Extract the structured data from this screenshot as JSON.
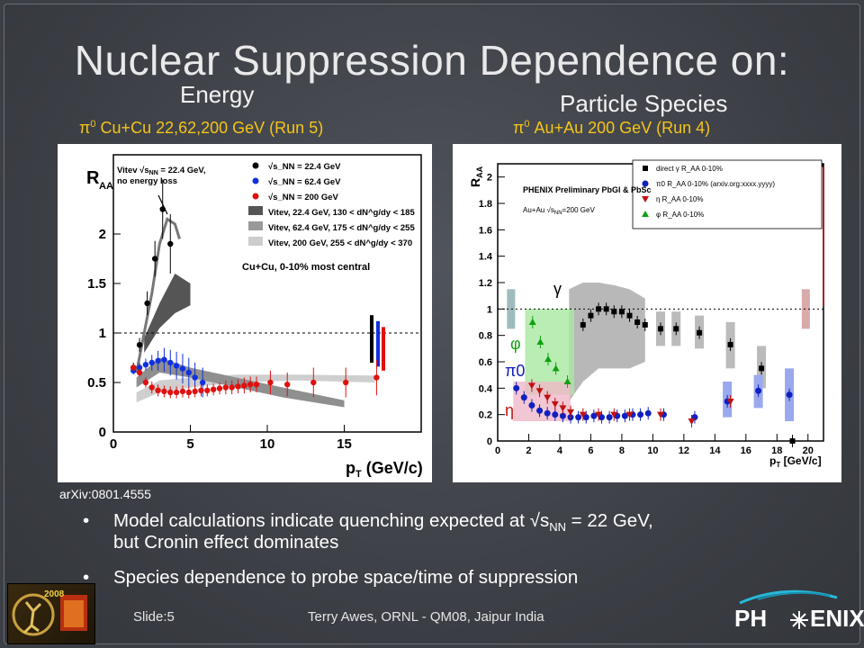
{
  "slide": {
    "title": "Nuclear Suppression Dependence on:",
    "subtitle_left": "Energy",
    "subtitle_right": "Particle Species",
    "caption_left_sym": "π",
    "caption_left_sup": "0",
    "caption_left_text": " Cu+Cu 22,62,200 GeV (Run 5)",
    "caption_right_sym": "π",
    "caption_right_sup": "0",
    "caption_right_text": " Au+Au 200 GeV (Run 4)",
    "reference": "arXiv:0801.4555",
    "bullet1_line1": "Model calculations indicate quenching expected at √s",
    "bullet1_sub": "NN",
    "bullet1_line1_end": " = 22 GeV,",
    "bullet1_line2": "but Cronin effect dominates",
    "bullet2": "Species dependence to probe space/time of suppression",
    "bullet_char": "•",
    "footer_slide": "Slide:5",
    "footer_author": "Terry Awes, ORNL - QM08, Jaipur India",
    "logo_left": "2008",
    "logo_right_a": "PH",
    "logo_right_b": "ENIX",
    "colors": {
      "caption": "#f5c518",
      "title": "#e9e9ea"
    }
  },
  "chart_data": [
    {
      "type": "scatter",
      "ylabel": "R_AA",
      "xlabel": "p_T (GeV/c)",
      "xlim": [
        0,
        20
      ],
      "ylim": [
        0,
        2.8
      ],
      "xticks": [
        0,
        5,
        10,
        15
      ],
      "yticks": [
        0,
        0.5,
        1,
        1.5,
        2
      ],
      "reference_line": 1,
      "annotation": "Vitev √s_NN = 22.4 GeV, no energy loss",
      "system_label": "Cu+Cu, 0-10% most central",
      "legend": [
        {
          "label": "√s_NN = 22.4 GeV",
          "color": "#000000"
        },
        {
          "label": "√s_NN = 62.4 GeV",
          "color": "#1030e0"
        },
        {
          "label": "√s_NN = 200 GeV",
          "color": "#e01010"
        },
        {
          "label": "Vitev, 22.4 GeV, 130 < dN^g/dy < 185",
          "color": "#555555"
        },
        {
          "label": "Vitev, 62.4 GeV, 175 < dN^g/dy < 255",
          "color": "#999999"
        },
        {
          "label": "Vitev, 200 GeV, 255 < dN^g/dy < 370",
          "color": "#cccccc"
        }
      ],
      "series": [
        {
          "name": "√s_NN = 22.4 GeV",
          "color": "#000000",
          "x": [
            1.3,
            1.7,
            2.2,
            2.7,
            3.2,
            3.7
          ],
          "y": [
            0.65,
            0.88,
            1.3,
            1.75,
            2.25,
            1.9
          ],
          "err": [
            0.05,
            0.07,
            0.12,
            0.18,
            0.3,
            0.3
          ]
        },
        {
          "name": "√s_NN = 62.4 GeV",
          "color": "#1030e0",
          "x": [
            1.3,
            1.7,
            2.1,
            2.5,
            2.9,
            3.3,
            3.7,
            4.1,
            4.5,
            4.9,
            5.3,
            5.8
          ],
          "y": [
            0.62,
            0.65,
            0.68,
            0.7,
            0.72,
            0.73,
            0.7,
            0.67,
            0.64,
            0.6,
            0.55,
            0.5
          ],
          "err": [
            0.04,
            0.05,
            0.06,
            0.08,
            0.1,
            0.12,
            0.13,
            0.14,
            0.15,
            0.15,
            0.15,
            0.15
          ]
        },
        {
          "name": "√s_NN = 200 GeV",
          "color": "#e01010",
          "x": [
            1.3,
            1.7,
            2.1,
            2.5,
            2.9,
            3.3,
            3.7,
            4.1,
            4.5,
            4.9,
            5.3,
            5.7,
            6.1,
            6.5,
            6.9,
            7.3,
            7.7,
            8.1,
            8.5,
            8.9,
            9.3,
            10.2,
            11.3,
            13.0,
            15.1,
            17.1
          ],
          "y": [
            0.65,
            0.6,
            0.5,
            0.45,
            0.42,
            0.41,
            0.4,
            0.4,
            0.41,
            0.4,
            0.41,
            0.42,
            0.42,
            0.43,
            0.44,
            0.45,
            0.45,
            0.46,
            0.47,
            0.48,
            0.48,
            0.5,
            0.48,
            0.5,
            0.5,
            0.55
          ],
          "err": [
            0.03,
            0.04,
            0.05,
            0.06,
            0.06,
            0.06,
            0.06,
            0.06,
            0.06,
            0.06,
            0.06,
            0.06,
            0.06,
            0.06,
            0.06,
            0.07,
            0.07,
            0.07,
            0.08,
            0.08,
            0.08,
            0.12,
            0.12,
            0.15,
            0.15,
            0.18
          ]
        }
      ]
    },
    {
      "type": "scatter",
      "ylabel": "R_AA",
      "xlabel": "p_T [GeV/c]",
      "xlim": [
        0,
        21
      ],
      "ylim": [
        0,
        2.1
      ],
      "xticks": [
        0,
        2,
        4,
        6,
        8,
        10,
        12,
        14,
        16,
        18,
        20
      ],
      "yticks": [
        0,
        0.2,
        0.4,
        0.6,
        0.8,
        1,
        1.2,
        1.4,
        1.6,
        1.8,
        2
      ],
      "reference_line": 1,
      "title": "PHENIX Preliminary PbGl & PbSc",
      "system_label": "Au+Au √s_NN=200 GeV",
      "legend": [
        {
          "label": "direct γ R_AA 0-10%",
          "color": "#000000",
          "marker": "square"
        },
        {
          "label": "π0 R_AA 0-10% (arxiv.org:xxxx.yyyy)",
          "color": "#1020c0",
          "marker": "circle"
        },
        {
          "label": "η R_AA 0-10%",
          "color": "#c01010",
          "marker": "triangle-down"
        },
        {
          "label": "φ R_AA 0-10%",
          "color": "#10a010",
          "marker": "triangle-up"
        }
      ],
      "markers_text": {
        "gamma": "γ",
        "phi": "φ",
        "pi0": "π0",
        "eta": "η"
      },
      "series": [
        {
          "name": "direct γ R_AA 0-10%",
          "color": "#000000",
          "x": [
            5.5,
            6.0,
            6.5,
            7.0,
            7.5,
            8.0,
            8.5,
            9.0,
            9.5,
            10.5,
            11.5,
            13.0,
            15.0,
            17.0,
            19.0
          ],
          "y": [
            0.88,
            0.95,
            1.0,
            1.0,
            0.98,
            0.98,
            0.95,
            0.9,
            0.88,
            0.85,
            0.85,
            0.82,
            0.73,
            0.55,
            0.0
          ]
        },
        {
          "name": "π0 R_AA 0-10% (arxiv.org:xxxx.yyyy)",
          "color": "#1020c0",
          "x": [
            1.2,
            1.7,
            2.2,
            2.7,
            3.2,
            3.7,
            4.2,
            4.7,
            5.2,
            5.7,
            6.2,
            6.7,
            7.2,
            7.7,
            8.2,
            8.7,
            9.2,
            9.7,
            10.7,
            12.7,
            14.8,
            16.8,
            18.8
          ],
          "y": [
            0.4,
            0.33,
            0.27,
            0.23,
            0.21,
            0.2,
            0.19,
            0.18,
            0.18,
            0.18,
            0.19,
            0.18,
            0.18,
            0.19,
            0.19,
            0.2,
            0.2,
            0.21,
            0.2,
            0.18,
            0.3,
            0.38,
            0.35
          ]
        },
        {
          "name": "η R_AA 0-10%",
          "color": "#c01010",
          "x": [
            2.2,
            2.7,
            3.2,
            3.7,
            4.2,
            4.7,
            5.5,
            6.5,
            7.5,
            8.5,
            10.5,
            12.5,
            15.0
          ],
          "y": [
            0.42,
            0.38,
            0.33,
            0.28,
            0.25,
            0.22,
            0.2,
            0.2,
            0.2,
            0.2,
            0.2,
            0.15,
            0.3
          ]
        },
        {
          "name": "φ R_AA 0-10%",
          "color": "#10a010",
          "x": [
            2.25,
            2.75,
            3.25,
            3.75,
            4.5
          ],
          "y": [
            0.9,
            0.75,
            0.62,
            0.55,
            0.45
          ]
        }
      ]
    }
  ]
}
